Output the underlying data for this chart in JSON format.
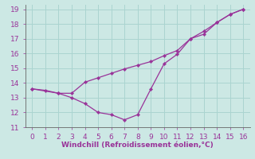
{
  "xlabel": "Windchill (Refroidissement éolien,°C)",
  "bg_color": "#cce8e4",
  "grid_color": "#aad4d0",
  "line_color": "#993399",
  "axis_color": "#666666",
  "xlim": [
    -0.5,
    16.5
  ],
  "ylim": [
    11,
    19.3
  ],
  "xticks": [
    0,
    1,
    2,
    3,
    4,
    5,
    6,
    7,
    8,
    9,
    10,
    11,
    12,
    13,
    14,
    15,
    16
  ],
  "yticks": [
    11,
    12,
    13,
    14,
    15,
    16,
    17,
    18,
    19
  ],
  "line1_x": [
    0,
    1,
    2,
    3,
    4,
    5,
    6,
    7,
    8,
    9,
    10,
    11,
    12,
    13,
    14,
    15,
    16
  ],
  "line1_y": [
    13.6,
    13.5,
    13.3,
    13.0,
    12.6,
    12.0,
    11.85,
    11.5,
    11.85,
    13.6,
    15.3,
    15.95,
    17.0,
    17.3,
    18.1,
    18.65,
    19.0
  ],
  "line2_x": [
    0,
    2,
    3,
    4,
    5,
    6,
    7,
    8,
    9,
    10,
    11,
    12,
    13,
    14,
    15,
    16
  ],
  "line2_y": [
    13.6,
    13.3,
    13.3,
    14.05,
    14.35,
    14.65,
    14.95,
    15.2,
    15.45,
    15.85,
    16.2,
    17.0,
    17.5,
    18.1,
    18.65,
    19.0
  ],
  "tick_fontsize": 6.5,
  "label_fontsize": 6.5
}
